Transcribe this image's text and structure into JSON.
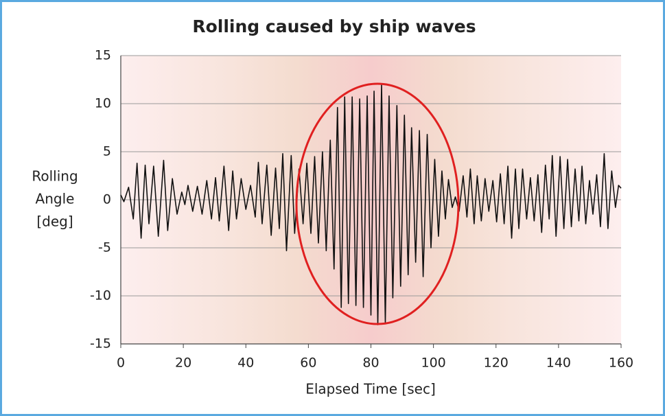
{
  "chart_data": {
    "type": "line",
    "title": "Rolling caused by ship waves",
    "xlabel": "Elapsed Time [sec]",
    "ylabel": [
      "Rolling",
      "Angle",
      "[deg]"
    ],
    "xlim": [
      0,
      160
    ],
    "ylim": [
      -15,
      15
    ],
    "xticks": [
      0,
      20,
      40,
      60,
      80,
      100,
      120,
      140,
      160
    ],
    "yticks": [
      15,
      10,
      5,
      0,
      -5,
      -10,
      -15
    ],
    "grid": true,
    "x": [
      0,
      1,
      2.5,
      4,
      5.2,
      6.5,
      7.8,
      9,
      10.5,
      12,
      13.7,
      15,
      16.5,
      18,
      19.5,
      20.5,
      21.5,
      23,
      24.5,
      26,
      27.5,
      29,
      30.3,
      31.5,
      33,
      34.5,
      35.8,
      37,
      38.5,
      40,
      41.5,
      43,
      44,
      45.2,
      46.7,
      48.1,
      49.5,
      50.7,
      51.8,
      53,
      54.5,
      55.6,
      57,
      58.3,
      59.5,
      60.8,
      62,
      63.2,
      64.5,
      65.7,
      67,
      68.2,
      69.3,
      70.5,
      71.6,
      72.8,
      74,
      75.2,
      76.4,
      77.6,
      78.8,
      80,
      81,
      82.2,
      83.4,
      84.6,
      85.8,
      87,
      88.3,
      89.5,
      90.7,
      91.9,
      93,
      94.3,
      95.5,
      96.7,
      98,
      99.2,
      100.4,
      101.6,
      102.7,
      103.8,
      104.8,
      106,
      107,
      108.2,
      109.5,
      110.7,
      111.8,
      113,
      114,
      115.3,
      116.5,
      117.7,
      119,
      120.2,
      121.4,
      122.6,
      123.8,
      125,
      126.2,
      127.3,
      128.5,
      129.8,
      131,
      132.2,
      133.4,
      134.6,
      135.8,
      137,
      138,
      139.2,
      140.5,
      141.7,
      142.9,
      144.1,
      145.3,
      146.5,
      147.5,
      148.7,
      149.9,
      151,
      152.2,
      153.4,
      154.6,
      155.8,
      157,
      158.2,
      159.2,
      160
    ],
    "series": [
      {
        "color": "#111111",
        "values": [
          0.5,
          -0.2,
          1.3,
          -2,
          3.8,
          -4,
          3.6,
          -2.5,
          3.5,
          -3.8,
          4.1,
          -3.2,
          2.2,
          -1.5,
          0.8,
          -0.5,
          1.5,
          -1.2,
          1.4,
          -1.5,
          2.0,
          -2.0,
          2.3,
          -2.2,
          3.5,
          -3.2,
          3.0,
          -2.0,
          2.2,
          -1.0,
          1.5,
          -1.8,
          3.9,
          -2.5,
          3.6,
          -3.7,
          3.3,
          -3.0,
          4.8,
          -5.3,
          4.6,
          -3.5,
          3.2,
          -2.5,
          3.8,
          -3.5,
          4.5,
          -4.5,
          5.0,
          -5.3,
          6.2,
          -7.2,
          9.6,
          -11.2,
          10.7,
          -10.8,
          10.7,
          -11.0,
          10.5,
          -11.2,
          10.8,
          -12.0,
          11.3,
          -13.0,
          12.0,
          -12.8,
          10.8,
          -10.2,
          9.8,
          -9.0,
          8.8,
          -7.8,
          7.5,
          -6.5,
          7.2,
          -8.0,
          6.8,
          -5.0,
          4.2,
          -3.8,
          3.0,
          -2.0,
          2.1,
          -0.8,
          0.3,
          -1.2,
          2.5,
          -1.8,
          3.2,
          -2.5,
          2.5,
          -2.2,
          2.2,
          -1.2,
          2.0,
          -2.3,
          2.7,
          -2.5,
          3.5,
          -4.0,
          3.2,
          -3.0,
          3.2,
          -2.0,
          2.3,
          -2.2,
          2.6,
          -3.4,
          3.6,
          -2.0,
          4.6,
          -3.8,
          4.5,
          -3.0,
          4.2,
          -2.8,
          3.2,
          -2.2,
          3.5,
          -2.5,
          2.0,
          -1.5,
          2.6,
          -2.8,
          4.8,
          -3.0,
          3.0,
          -0.8,
          1.5,
          1.2
        ]
      }
    ]
  }
}
